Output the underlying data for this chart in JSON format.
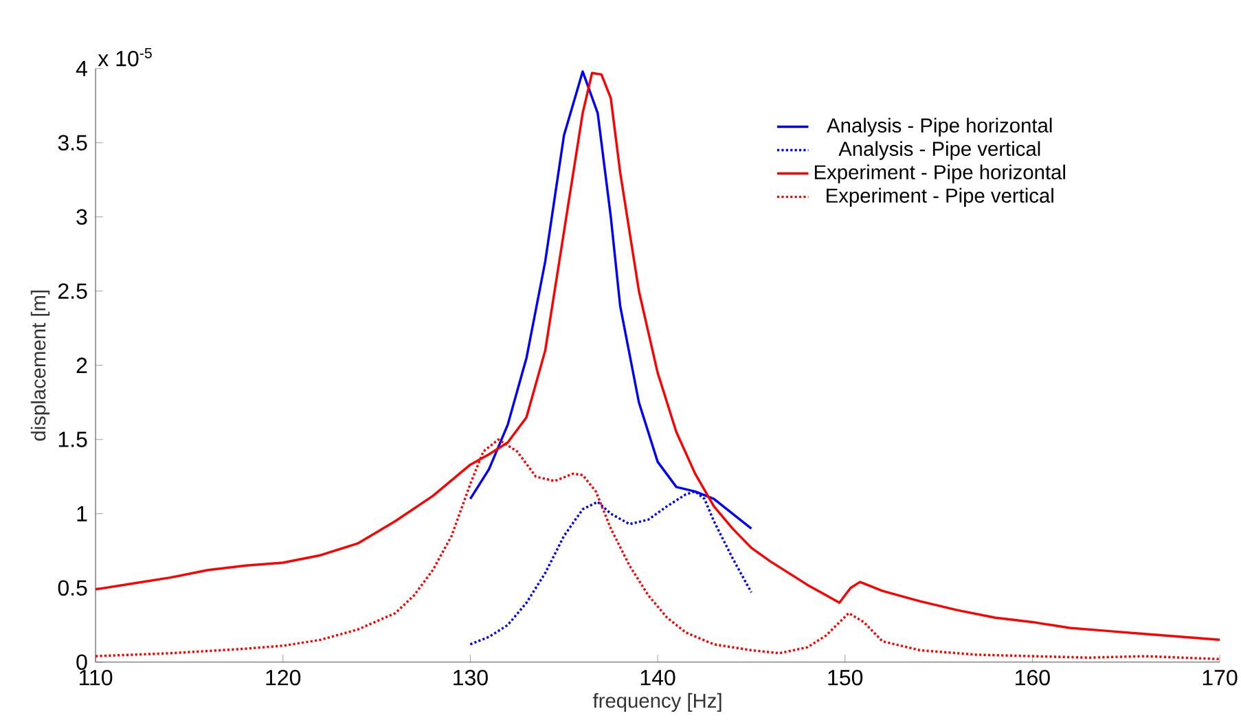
{
  "chart_data": {
    "type": "line",
    "xlabel": "frequency [Hz]",
    "ylabel": "displacement [m]",
    "annotations": [
      "x 10$^{-5}$"
    ],
    "xlim": [
      110,
      170
    ],
    "xticks": [
      110,
      120,
      130,
      140,
      150,
      160,
      170
    ],
    "ylim": [
      0,
      4
    ],
    "yticks": [
      0,
      0.5,
      1,
      1.5,
      2,
      2.5,
      3,
      3.5,
      4
    ],
    "legend": "top right",
    "grid": false,
    "marker": "none",
    "series": [
      {
        "name": "Analysis - Pipe horizontal",
        "color": "#0000ff",
        "line_style": "solid",
        "x": [
          130,
          131,
          132,
          133,
          134,
          135,
          136,
          136.8,
          137.5,
          138,
          139,
          140,
          141,
          142,
          143,
          144,
          145
        ],
        "values": [
          1.1,
          1.3,
          1.6,
          2.05,
          2.7,
          3.55,
          3.98,
          3.7,
          3.0,
          2.4,
          1.75,
          1.35,
          1.18,
          1.15,
          1.1,
          1.0,
          0.9
        ]
      },
      {
        "name": "Analysis - Pipe vertical",
        "color": "#0000ff",
        "line_style": "dotted",
        "x": [
          130,
          131,
          132,
          133,
          134,
          135,
          136,
          136.8,
          137.5,
          138.5,
          139.5,
          140.5,
          141.5,
          142,
          142.5,
          143,
          144,
          145
        ],
        "values": [
          0.12,
          0.17,
          0.25,
          0.4,
          0.6,
          0.85,
          1.03,
          1.08,
          1.0,
          0.93,
          0.96,
          1.05,
          1.13,
          1.15,
          1.1,
          0.95,
          0.7,
          0.47
        ]
      },
      {
        "name": "Experiment - Pipe horizontal",
        "color": "#ff0000",
        "line_style": "solid",
        "x": [
          110,
          112,
          114,
          116,
          118,
          120,
          122,
          124,
          126,
          128,
          130,
          131,
          132,
          133,
          134,
          135,
          136,
          136.5,
          137,
          137.5,
          138,
          139,
          140,
          141,
          142,
          143,
          144,
          145,
          146,
          147,
          148,
          149,
          149.7,
          150.3,
          150.8,
          152,
          154,
          156,
          158,
          160,
          162,
          164,
          166,
          168,
          170
        ],
        "values": [
          0.49,
          0.53,
          0.57,
          0.62,
          0.65,
          0.67,
          0.72,
          0.8,
          0.95,
          1.12,
          1.33,
          1.4,
          1.48,
          1.65,
          2.1,
          2.9,
          3.7,
          3.97,
          3.96,
          3.8,
          3.3,
          2.5,
          1.95,
          1.55,
          1.27,
          1.05,
          0.9,
          0.77,
          0.68,
          0.6,
          0.52,
          0.45,
          0.4,
          0.5,
          0.54,
          0.48,
          0.41,
          0.35,
          0.3,
          0.27,
          0.23,
          0.21,
          0.19,
          0.17,
          0.15
        ]
      },
      {
        "name": "Experiment - Pipe vertical",
        "color": "#ff0000",
        "line_style": "dotted",
        "x": [
          110,
          114,
          118,
          120,
          122,
          124,
          126,
          127,
          128,
          129,
          130,
          130.7,
          131.5,
          132.5,
          133.5,
          134.5,
          135.5,
          136,
          136.7,
          137.5,
          138.5,
          139.5,
          140.5,
          141.5,
          143,
          145,
          146.5,
          148,
          149,
          150.2,
          151,
          152,
          154,
          157,
          160,
          163,
          166,
          170
        ],
        "values": [
          0.04,
          0.06,
          0.09,
          0.11,
          0.15,
          0.22,
          0.33,
          0.45,
          0.62,
          0.85,
          1.2,
          1.42,
          1.5,
          1.42,
          1.25,
          1.22,
          1.27,
          1.26,
          1.15,
          0.9,
          0.65,
          0.45,
          0.3,
          0.2,
          0.12,
          0.08,
          0.06,
          0.1,
          0.18,
          0.33,
          0.27,
          0.14,
          0.08,
          0.05,
          0.04,
          0.03,
          0.04,
          0.02
        ]
      }
    ]
  }
}
